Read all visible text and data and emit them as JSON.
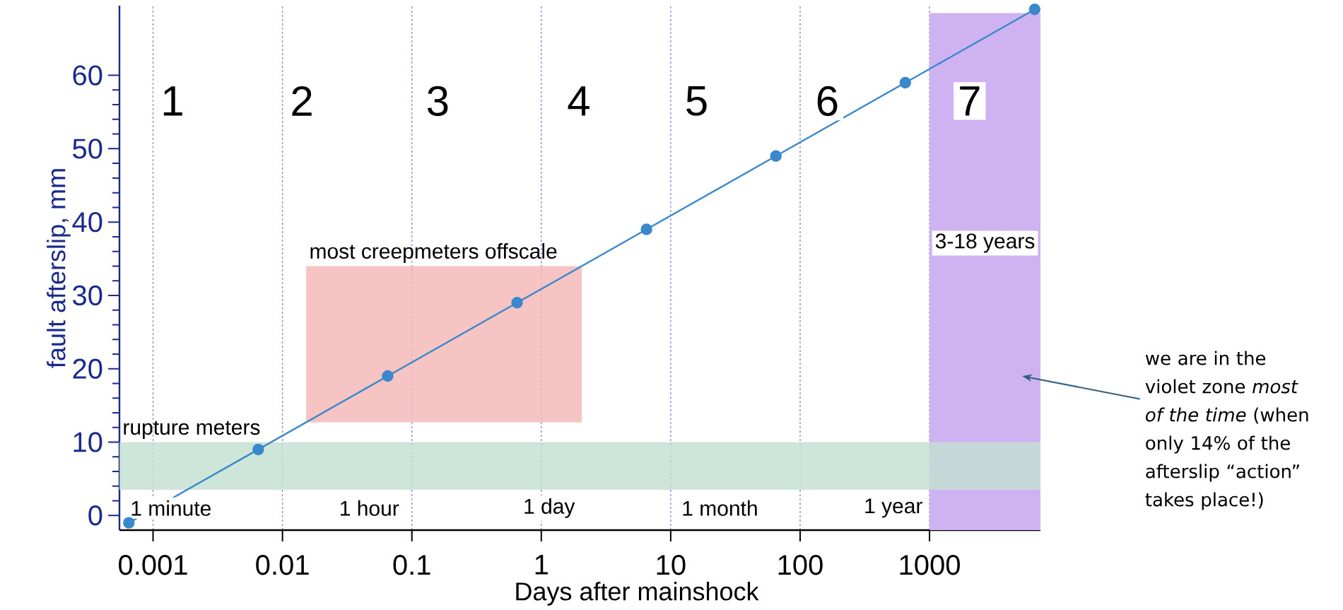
{
  "chart_data": {
    "type": "line",
    "xlabel": "Days after mainshock",
    "ylabel": "fault afterslip, mm",
    "x": [
      0.00065,
      0.0065,
      0.065,
      0.65,
      6.5,
      65,
      650,
      6500
    ],
    "series": [
      {
        "color": "#3a88cc",
        "values": [
          -1,
          9,
          19,
          29,
          39,
          49,
          59,
          69
        ]
      }
    ],
    "log": "x",
    "xlim": [
      0.00055,
      7200
    ],
    "ylim": [
      -2,
      69.5
    ],
    "xticks": [
      0.001,
      0.01,
      0.1,
      1,
      10,
      100,
      1000
    ],
    "yticks": [
      0,
      10,
      20,
      30,
      40,
      50,
      60
    ],
    "grid": "x",
    "legend": false,
    "marker": "circle",
    "line_style": "solid",
    "bands": [
      {
        "axis": "y",
        "from": 3.5,
        "to": 10,
        "label": "rupture meters",
        "color": "#c2e0d0"
      },
      {
        "axis": "y",
        "from": 12.7,
        "to": 34,
        "label": "most creepmeters offscale",
        "color": "#f5b5b5"
      },
      {
        "axis": "x",
        "from": 1000,
        "to": 7200,
        "label": "3-18 years",
        "color": "#cfb2f2"
      }
    ],
    "annotations": [
      "1",
      "2",
      "3",
      "4",
      "5",
      "6",
      "7",
      "1 minute",
      "1 hour",
      "1 day",
      "1 month",
      "1 year",
      "we are in the violet zone *most of the time* (when only 14% of the afterslip “action” takes place!)"
    ]
  }
}
